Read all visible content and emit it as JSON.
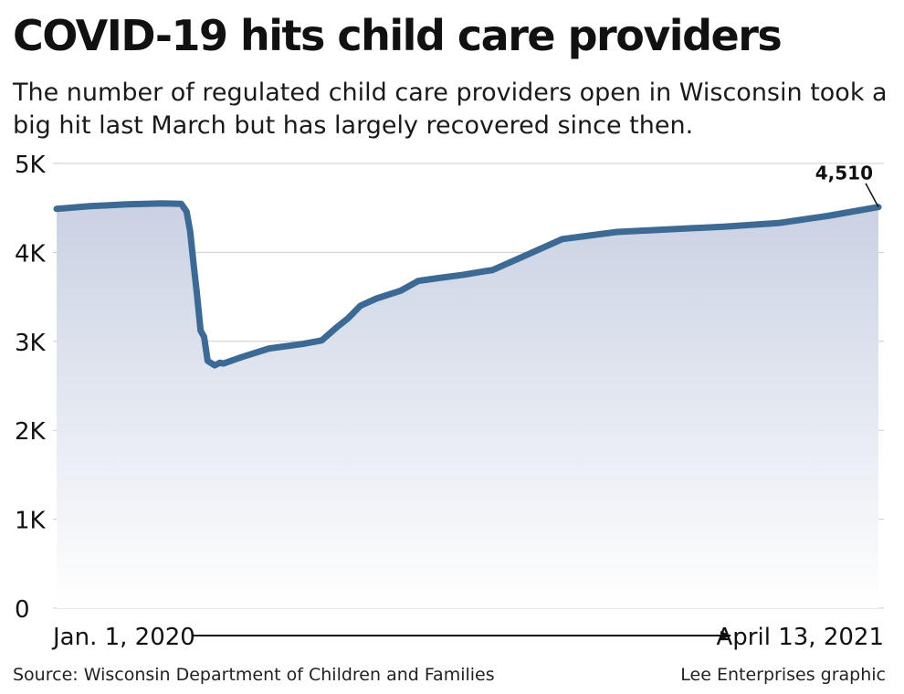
{
  "title": "COVID-19 hits child care providers",
  "subtitle": "The number of regulated child care providers open in Wisconsin took a big hit last March but has largely recovered since then.",
  "source": "Source: Wisconsin Department of Children and Families",
  "credit": "Lee Enterprises graphic",
  "colors": {
    "line": "#3d6a94",
    "area_top": "#c9d1e3",
    "area_bottom": "#ffffff",
    "grid": "#cccccc"
  },
  "chart_data": {
    "type": "area",
    "title": "COVID-19 hits child care providers",
    "xlabel": "",
    "ylabel": "",
    "ylim": [
      0,
      5000
    ],
    "y_ticks": [
      0,
      1000,
      2000,
      3000,
      4000,
      5000
    ],
    "y_tick_labels": [
      "0",
      "1K",
      "2K",
      "3K",
      "4K",
      "5K"
    ],
    "x_start_label": "Jan. 1, 2020",
    "x_end_label": "April 13, 2021",
    "grid": true,
    "end_annotation": "4,510",
    "series": [
      {
        "x": [
          "2020-01-01",
          "2020-01-20",
          "2020-02-10",
          "2020-03-01",
          "2020-03-12",
          "2020-03-15",
          "2020-03-17",
          "2020-03-19",
          "2020-03-21",
          "2020-03-23",
          "2020-03-25",
          "2020-03-27",
          "2020-03-31",
          "2020-04-03",
          "2020-04-05",
          "2020-04-15",
          "2020-05-01",
          "2020-05-20",
          "2020-05-31",
          "2020-06-08",
          "2020-06-15",
          "2020-06-22",
          "2020-07-01",
          "2020-07-15",
          "2020-07-25",
          "2020-08-05",
          "2020-08-20",
          "2020-09-01",
          "2020-09-05",
          "2020-09-20",
          "2020-10-15",
          "2020-11-15",
          "2020-12-15",
          "2021-01-15",
          "2021-02-15",
          "2021-03-15",
          "2021-04-13"
        ],
        "y": [
          4490,
          4520,
          4540,
          4550,
          4545,
          4460,
          4240,
          3870,
          3520,
          3120,
          3050,
          2780,
          2730,
          2760,
          2750,
          2820,
          2920,
          2970,
          3010,
          3150,
          3260,
          3400,
          3480,
          3570,
          3680,
          3710,
          3750,
          3790,
          3800,
          3930,
          4150,
          4230,
          4260,
          4290,
          4330,
          4410,
          4510
        ]
      }
    ]
  }
}
